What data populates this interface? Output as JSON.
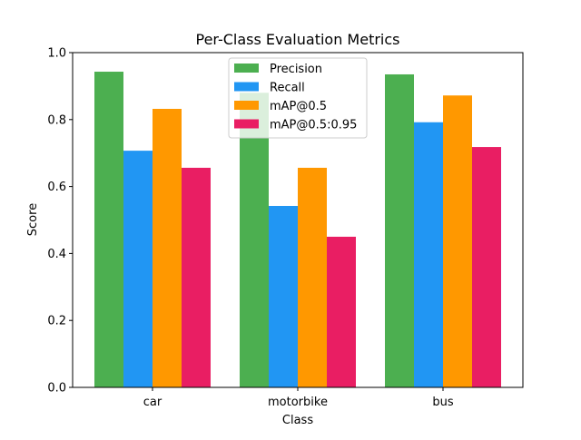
{
  "chart_data": {
    "type": "bar",
    "title": "Per-Class Evaluation Metrics",
    "xlabel": "Class",
    "ylabel": "Score",
    "categories": [
      "car",
      "motorbike",
      "bus"
    ],
    "ylim": [
      0,
      1
    ],
    "yticks": [
      0.0,
      0.2,
      0.4,
      0.6,
      0.8,
      1.0
    ],
    "ytick_labels": [
      "0.0",
      "0.2",
      "0.4",
      "0.6",
      "0.8",
      "1.0"
    ],
    "grid": false,
    "legend_position": "top-center",
    "series": [
      {
        "name": "Precision",
        "color": "#4caf50",
        "values": [
          0.943,
          0.88,
          0.935
        ]
      },
      {
        "name": "Recall",
        "color": "#2196f3",
        "values": [
          0.707,
          0.542,
          0.792
        ]
      },
      {
        "name": "mAP@0.5",
        "color": "#ff9800",
        "values": [
          0.832,
          0.656,
          0.872
        ]
      },
      {
        "name": "mAP@0.5:0.95",
        "color": "#e91e63",
        "values": [
          0.656,
          0.45,
          0.718
        ]
      }
    ]
  }
}
